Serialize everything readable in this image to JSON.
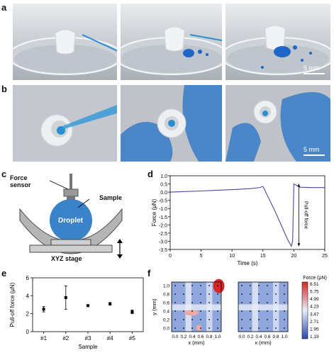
{
  "panels": {
    "a": "a",
    "b": "b",
    "c": "c",
    "d": "d",
    "e": "e",
    "f": "f"
  },
  "scale_bar": "5 mm",
  "schematic": {
    "force_sensor": "Force sensor",
    "sample": "Sample",
    "droplet": "Droplet",
    "stage": "XYZ stage"
  },
  "colors": {
    "photo_grey": "#b8bcc2",
    "glove_blue": "#4a86c8",
    "dye_blue": "#1f66c9",
    "droplet_blue": "#3a83c8",
    "line_purple": "#4a47a3",
    "heat_low": "#2b47a8",
    "heat_mid": "#e8eef8",
    "heat_high": "#d62728"
  },
  "chart_data": [
    {
      "type": "line",
      "xlabel": "Time (s)",
      "ylabel": "Force (μN)",
      "xlim": [
        0,
        25
      ],
      "ylim": [
        -3.5,
        1.0
      ],
      "xticks": [
        "0",
        "5",
        "10",
        "15",
        "20",
        "25"
      ],
      "yticks": [
        "1.0",
        "0.5",
        "0.0",
        "-0.5",
        "-1.0",
        "-1.5",
        "-2.0",
        "-2.5",
        "-3.0",
        "-3.5"
      ],
      "annotation": "Pull-off force",
      "series": [
        {
          "x": [
            0,
            2,
            5,
            8,
            11,
            13,
            14.5,
            15,
            17,
            19,
            19.6,
            19.8,
            20,
            21,
            23,
            25
          ],
          "y": [
            0.0,
            0.03,
            0.07,
            0.12,
            0.17,
            0.22,
            0.28,
            0.35,
            -1.2,
            -2.9,
            -3.3,
            -3.0,
            0.5,
            0.3,
            0.28,
            0.28
          ]
        }
      ]
    },
    {
      "type": "scatter",
      "xlabel": "Sample",
      "ylabel": "Pull-off force (μN)",
      "ylim": [
        0,
        6
      ],
      "yticks": [
        "0",
        "2",
        "4",
        "6"
      ],
      "categories": [
        "#1",
        "#2",
        "#3",
        "#4",
        "#5"
      ],
      "values": [
        2.5,
        3.8,
        2.9,
        3.1,
        2.2
      ],
      "errors": [
        0.3,
        1.3,
        0.1,
        0.15,
        0.2
      ]
    },
    {
      "type": "heatmap",
      "xlabel": "x (mm)",
      "ylabel": "y (mm)",
      "xticks": [
        "0.0",
        "0.2",
        "0.4",
        "0.6",
        "0.8",
        "1.0"
      ],
      "yticks": [
        "0.0",
        "0.2",
        "0.4",
        "0.6",
        "0.8",
        "1.0"
      ],
      "colorbar_title": "Force (μN)",
      "colorbar_ticks": [
        "6.51",
        "5.75",
        "4.99",
        "4.23",
        "3.47",
        "2.71",
        "1.95",
        "1.19"
      ],
      "range": [
        1.19,
        6.51
      ]
    }
  ]
}
